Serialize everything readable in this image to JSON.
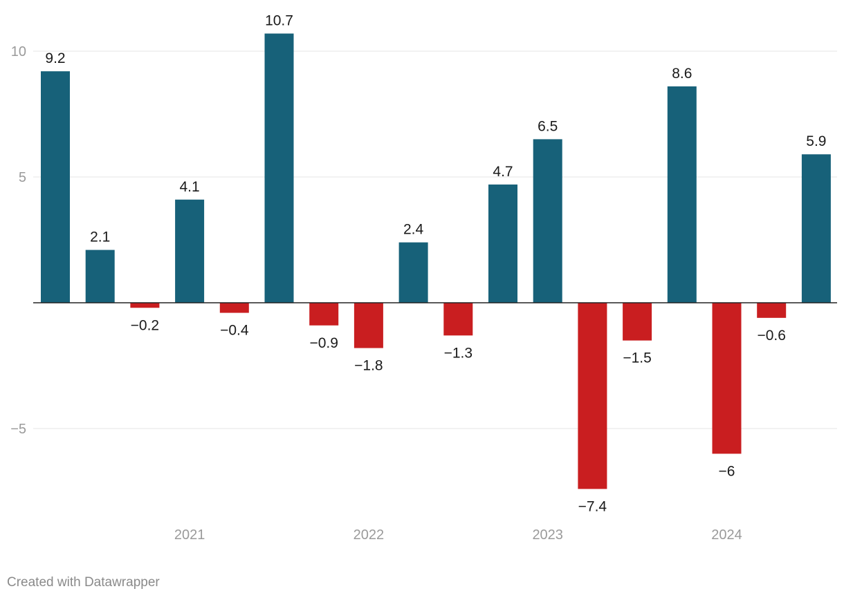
{
  "chart_data": {
    "type": "bar",
    "title": "",
    "xlabel": "",
    "ylabel": "",
    "ylim": [
      -9,
      11
    ],
    "yticks": [
      {
        "value": 10,
        "label": "10"
      },
      {
        "value": 5,
        "label": "5"
      },
      {
        "value": -5,
        "label": "−5"
      }
    ],
    "values": [
      9.2,
      2.1,
      -0.2,
      4.1,
      -0.4,
      10.7,
      -0.9,
      -1.8,
      2.4,
      -1.3,
      4.7,
      6.5,
      -7.4,
      -1.5,
      8.6,
      -6,
      -0.6,
      5.9
    ],
    "value_labels": [
      "9.2",
      "2.1",
      "−0.2",
      "4.1",
      "−0.4",
      "10.7",
      "−0.9",
      "−1.8",
      "2.4",
      "−1.3",
      "4.7",
      "6.5",
      "−7.4",
      "−1.5",
      "8.6",
      "−6",
      "−0.6",
      "5.9"
    ],
    "x_group_labels": [
      {
        "label": "2021",
        "center_index": 3.0
      },
      {
        "label": "2022",
        "center_index": 7.0
      },
      {
        "label": "2023",
        "center_index": 11.0
      },
      {
        "label": "2024",
        "center_index": 15.0
      }
    ],
    "colors": {
      "positive": "#176179",
      "negative": "#c91e20"
    }
  },
  "footer": {
    "credit": "Created with Datawrapper"
  }
}
